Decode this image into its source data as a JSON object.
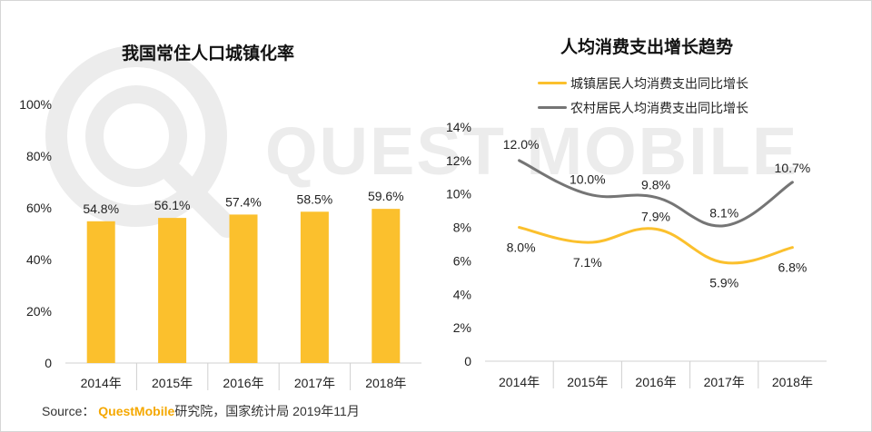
{
  "watermark": {
    "text": "QUEST MOBILE",
    "color": "#ececec"
  },
  "source": {
    "prefix": "Source： ",
    "brand": "QuestMobile",
    "suffix": "研究院，国家统计局 2019年11月"
  },
  "chart_data": [
    {
      "type": "bar",
      "title": "我国常住人口城镇化率",
      "categories": [
        "2014年",
        "2015年",
        "2016年",
        "2017年",
        "2018年"
      ],
      "values": [
        54.8,
        56.1,
        57.4,
        58.5,
        59.6
      ],
      "value_labels": [
        "54.8%",
        "56.1%",
        "57.4%",
        "58.5%",
        "59.6%"
      ],
      "ylim": [
        0,
        100
      ],
      "y_ticks": [
        0,
        20,
        40,
        60,
        80,
        100
      ],
      "y_tick_labels": [
        "0",
        "20%",
        "40%",
        "60%",
        "80%",
        "100%"
      ],
      "bar_color": "#fbc02d",
      "grid": false,
      "xlabel": "",
      "ylabel": ""
    },
    {
      "type": "line",
      "title": "人均消费支出增长趋势",
      "categories": [
        "2014年",
        "2015年",
        "2016年",
        "2017年",
        "2018年"
      ],
      "series": [
        {
          "name": "城镇居民人均消费支出同比增长",
          "values": [
            8.0,
            7.1,
            7.9,
            5.9,
            6.8
          ],
          "labels": [
            "8.0%",
            "7.1%",
            "7.9%",
            "5.9%",
            "6.8%"
          ],
          "color": "#fbc02d"
        },
        {
          "name": "农村居民人均消费支出同比增长",
          "values": [
            12.0,
            10.0,
            9.8,
            8.1,
            10.7
          ],
          "labels": [
            "12.0%",
            "10.0%",
            "9.8%",
            "8.1%",
            "10.7%"
          ],
          "color": "#757575"
        }
      ],
      "ylim": [
        0,
        14
      ],
      "y_ticks": [
        0,
        2,
        4,
        6,
        8,
        10,
        12,
        14
      ],
      "y_tick_labels": [
        "0",
        "2%",
        "4%",
        "6%",
        "8%",
        "10%",
        "12%",
        "14%"
      ],
      "smooth": true,
      "legend": "top",
      "grid": false,
      "xlabel": "",
      "ylabel": ""
    }
  ]
}
